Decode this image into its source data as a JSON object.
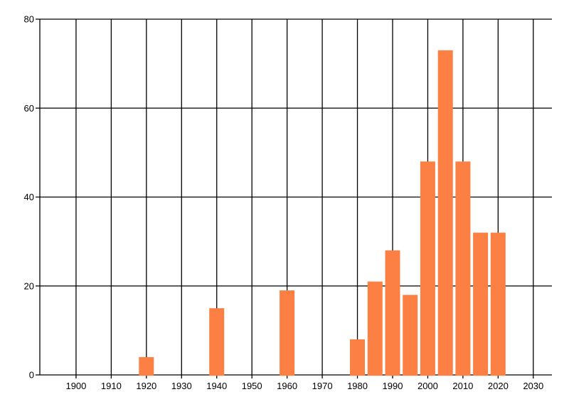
{
  "chart_data": {
    "type": "bar",
    "title": "",
    "xlabel": "",
    "ylabel": "",
    "x": [
      1920,
      1940,
      1960,
      1980,
      1985,
      1990,
      1995,
      2000,
      2005,
      2010,
      2015,
      2020
    ],
    "values": [
      4,
      15,
      19,
      8,
      21,
      28,
      18,
      48,
      73,
      48,
      32,
      32
    ],
    "xlim": [
      1889.7,
      2035.3
    ],
    "ylim": [
      0,
      80
    ],
    "xticks": [
      1900,
      1910,
      1920,
      1930,
      1940,
      1950,
      1960,
      1970,
      1980,
      1990,
      2000,
      2010,
      2020,
      2030
    ],
    "xtick_labels": [
      "1900",
      "1910",
      "1920",
      "1930",
      "1940",
      "1950",
      "1960",
      "1970",
      "1980",
      "1990",
      "2000",
      "2010",
      "2020",
      "2030"
    ],
    "yticks": [
      0,
      20,
      40,
      60,
      80
    ],
    "ytick_labels": [
      "0",
      "20",
      "40",
      "60",
      "80"
    ],
    "grid": true,
    "legend": null,
    "colors": {
      "bar": "#FC8044",
      "grid": "#000000",
      "axis": "#000000",
      "text": "#000000",
      "background": "#ffffff"
    }
  }
}
